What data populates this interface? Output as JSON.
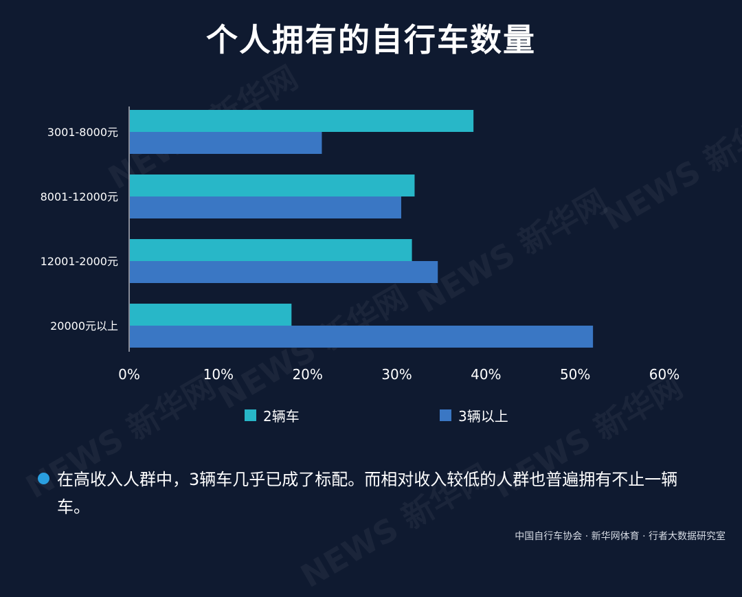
{
  "title": "个人拥有的自行车数量",
  "colors": {
    "background": "#0f1a30",
    "series_2": "#28b7c8",
    "series_3": "#3a77c4",
    "note_dot": "#2a9fe0"
  },
  "chart_data": {
    "type": "bar",
    "orientation": "horizontal",
    "categories": [
      "3001-8000元",
      "8001-12000元",
      "12001-2000元",
      "20000元以上"
    ],
    "series": [
      {
        "name": "2辆车",
        "values": [
          38.6,
          32.0,
          31.7,
          18.2
        ]
      },
      {
        "name": "3辆以上",
        "values": [
          21.6,
          30.5,
          34.6,
          52.0
        ]
      }
    ],
    "xlim": [
      0,
      60
    ],
    "xticks": [
      "0%",
      "10%",
      "20%",
      "30%",
      "40%",
      "50%",
      "60%"
    ],
    "legend_position": "bottom",
    "grid": false
  },
  "legend": {
    "items": [
      {
        "label": "2辆车",
        "color": "#28b7c8"
      },
      {
        "label": "3辆以上",
        "color": "#3a77c4"
      }
    ]
  },
  "note": "在高收入人群中，3辆车几乎已成了标配。而相对收入较低的人群也普遍拥有不止一辆车。",
  "footer": "中国自行车协会 · 新华网体育 · 行者大数据研究室",
  "watermark": "NEWS 新华网"
}
